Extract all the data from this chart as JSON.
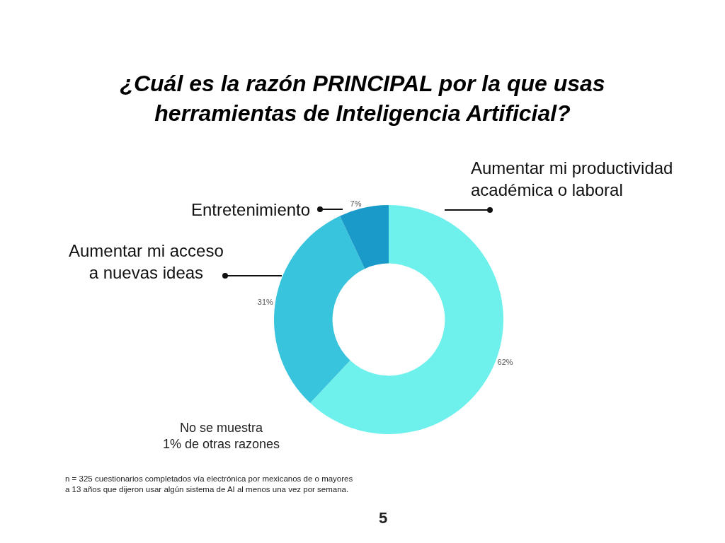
{
  "chart_data": {
    "type": "donut",
    "title": "¿Cuál es la razón PRINCIPAL por la que usas herramientas de Inteligencia Artificial?",
    "categories": [
      "Aumentar mi productividad académica o laboral",
      "Aumentar mi acceso a nuevas ideas",
      "Entretenimiento"
    ],
    "values": [
      62,
      31,
      7
    ],
    "colors": [
      "#6ef0ec",
      "#38c4dc",
      "#1a9ac8"
    ],
    "value_labels": [
      "62%",
      "31%",
      "7%"
    ],
    "legend": false,
    "annotations": [
      "No se muestra 1% de otras razones",
      "n = 325 cuestionarios completados vía electrónica por mexicanos de o mayores a 13 años que dijeron usar algún sistema de AI al menos una vez por semana.",
      "5"
    ]
  }
}
